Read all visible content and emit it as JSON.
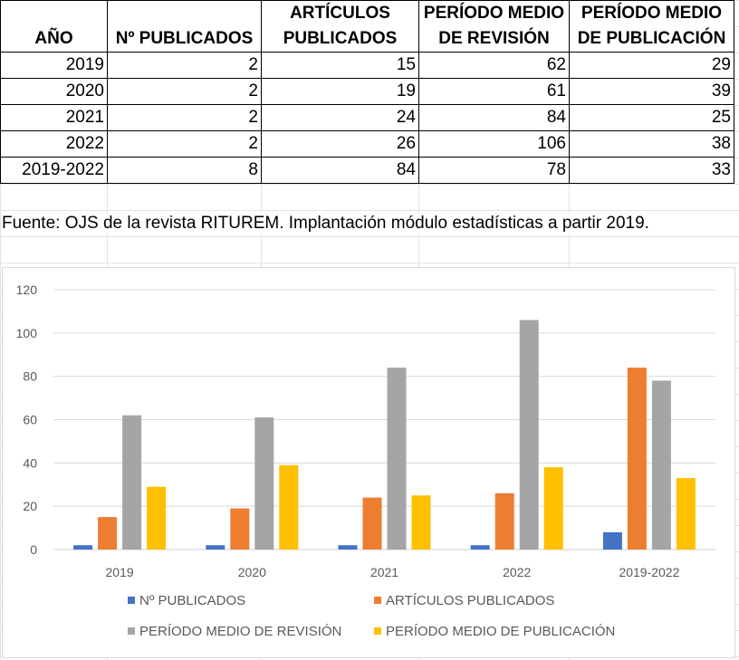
{
  "table": {
    "headers": [
      "AÑO",
      "Nº PUBLICADOS",
      "ARTÍCULOS PUBLICADOS",
      "PERÍODO MEDIO DE REVISIÓN",
      "PERÍODO MEDIO DE PUBLICACIÓN"
    ],
    "rows": [
      [
        "2019",
        "2",
        "15",
        "62",
        "29"
      ],
      [
        "2020",
        "2",
        "19",
        "61",
        "39"
      ],
      [
        "2021",
        "2",
        "24",
        "84",
        "25"
      ],
      [
        "2022",
        "2",
        "26",
        "106",
        "38"
      ],
      [
        "2019-2022",
        "8",
        "84",
        "78",
        "33"
      ]
    ]
  },
  "source_note": "Fuente: OJS de la revista RITUREM. Implantación módulo estadísticas a partir 2019.",
  "chart_data": {
    "type": "bar",
    "title": "",
    "xlabel": "",
    "ylabel": "",
    "categories": [
      "2019",
      "2020",
      "2021",
      "2022",
      "2019-2022"
    ],
    "series": [
      {
        "name": "Nº PUBLICADOS",
        "color": "#4472c4",
        "values": [
          2,
          2,
          2,
          2,
          8
        ]
      },
      {
        "name": "ARTÍCULOS PUBLICADOS",
        "color": "#ed7d31",
        "values": [
          15,
          19,
          24,
          26,
          84
        ]
      },
      {
        "name": "PERÍODO MEDIO DE REVISIÓN",
        "color": "#a5a5a5",
        "values": [
          62,
          61,
          84,
          106,
          78
        ]
      },
      {
        "name": "PERÍODO MEDIO DE PUBLICACIÓN",
        "color": "#ffc000",
        "values": [
          29,
          39,
          25,
          38,
          33
        ]
      }
    ],
    "ylim": [
      0,
      120
    ],
    "yticks": [
      "0",
      "20",
      "40",
      "60",
      "80",
      "100",
      "120"
    ],
    "grid": true,
    "legend_position": "bottom"
  }
}
